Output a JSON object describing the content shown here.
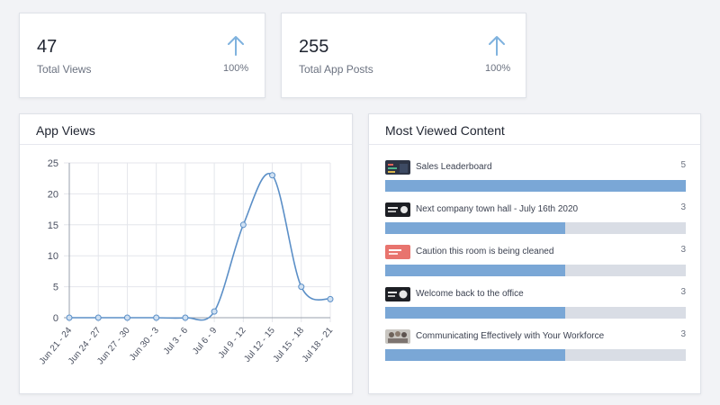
{
  "stats": [
    {
      "value": "47",
      "label": "Total Views",
      "change": "100%"
    },
    {
      "value": "255",
      "label": "Total App Posts",
      "change": "100%"
    }
  ],
  "app_views": {
    "title": "App Views"
  },
  "most_viewed": {
    "title": "Most Viewed Content",
    "max": 5,
    "items": [
      {
        "label": "Sales Leaderboard",
        "count": "5",
        "value": 5,
        "thumb": "dark-chart-thumbnail"
      },
      {
        "label": "Next company town hall - July 16th 2020",
        "count": "3",
        "value": 3,
        "thumb": "town-hall-thumbnail"
      },
      {
        "label": "Caution this room is being cleaned",
        "count": "3",
        "value": 3,
        "thumb": "caution-thumbnail"
      },
      {
        "label": "Welcome back to the office",
        "count": "3",
        "value": 3,
        "thumb": "welcome-thumbnail"
      },
      {
        "label": "Communicating Effectively with Your Workforce",
        "count": "3",
        "value": 3,
        "thumb": "people-thumbnail"
      }
    ]
  },
  "colors": {
    "accent": "#7aa7d6",
    "line": "#5b8fc7",
    "arrow": "#7fb2de",
    "bar_track": "#d9dde5"
  },
  "chart_data": {
    "type": "line",
    "title": "App Views",
    "categories": [
      "Jun 21 - 24",
      "Jun 24 - 27",
      "Jun 27 - 30",
      "Jun 30 - 3",
      "Jul 3 - 6",
      "Jul 6 - 9",
      "Jul 9 - 12",
      "Jul 12 - 15",
      "Jul 15 - 18",
      "Jul 18 - 21"
    ],
    "series": [
      {
        "values": [
          0,
          0,
          0,
          0,
          0,
          1,
          15,
          23,
          5,
          3
        ]
      }
    ],
    "yticks": [
      "0",
      "5",
      "10",
      "15",
      "20",
      "25"
    ],
    "ylim": [
      0,
      25
    ],
    "grid": true,
    "legend": "none"
  }
}
